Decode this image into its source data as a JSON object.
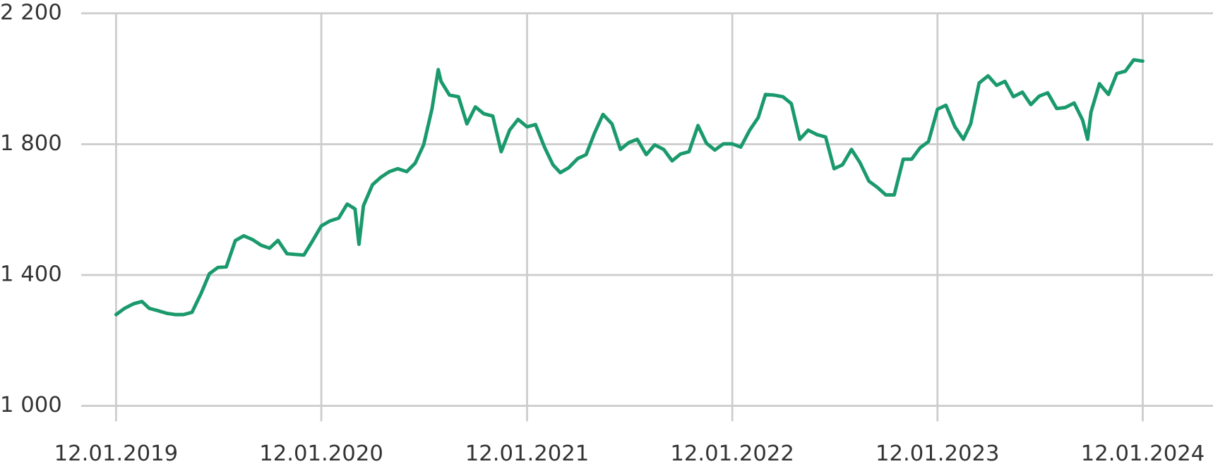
{
  "chart_data": {
    "type": "line",
    "x": [
      "12.01.2019",
      "27.01.2019",
      "12.02.2019",
      "27.02.2019",
      "12.03.2019",
      "27.03.2019",
      "12.04.2019",
      "27.04.2019",
      "12.05.2019",
      "27.05.2019",
      "12.06.2019",
      "27.06.2019",
      "12.07.2019",
      "27.07.2019",
      "12.08.2019",
      "27.08.2019",
      "12.09.2019",
      "27.09.2019",
      "12.10.2019",
      "27.10.2019",
      "12.11.2019",
      "27.11.2019",
      "12.12.2019",
      "27.12.2019",
      "12.01.2020",
      "27.01.2020",
      "12.02.2020",
      "27.02.2020",
      "12.03.2020",
      "19.03.2020",
      "27.03.2020",
      "12.04.2020",
      "27.04.2020",
      "12.05.2020",
      "27.05.2020",
      "12.06.2020",
      "27.06.2020",
      "12.07.2020",
      "27.07.2020",
      "07.08.2020",
      "12.08.2020",
      "27.08.2020",
      "12.09.2020",
      "27.09.2020",
      "12.10.2020",
      "27.10.2020",
      "12.11.2020",
      "27.11.2020",
      "12.12.2020",
      "27.12.2020",
      "12.01.2021",
      "27.01.2021",
      "12.02.2021",
      "27.02.2021",
      "12.03.2021",
      "27.03.2021",
      "12.04.2021",
      "27.04.2021",
      "12.05.2021",
      "27.05.2021",
      "12.06.2021",
      "27.06.2021",
      "12.07.2021",
      "27.07.2021",
      "12.08.2021",
      "27.08.2021",
      "12.09.2021",
      "27.09.2021",
      "12.10.2021",
      "27.10.2021",
      "12.11.2021",
      "27.11.2021",
      "12.12.2021",
      "27.12.2021",
      "12.01.2022",
      "27.01.2022",
      "12.02.2022",
      "27.02.2022",
      "12.03.2022",
      "27.03.2022",
      "12.04.2022",
      "27.04.2022",
      "12.05.2022",
      "27.05.2022",
      "12.06.2022",
      "27.06.2022",
      "12.07.2022",
      "27.07.2022",
      "12.08.2022",
      "27.08.2022",
      "12.09.2022",
      "27.09.2022",
      "12.10.2022",
      "27.10.2022",
      "12.11.2022",
      "27.11.2022",
      "12.12.2022",
      "27.12.2022",
      "12.01.2023",
      "27.01.2023",
      "12.02.2023",
      "27.02.2023",
      "12.03.2023",
      "27.03.2023",
      "12.04.2023",
      "27.04.2023",
      "12.05.2023",
      "27.05.2023",
      "12.06.2023",
      "27.06.2023",
      "12.07.2023",
      "27.07.2023",
      "12.08.2023",
      "27.08.2023",
      "12.09.2023",
      "27.09.2023",
      "06.10.2023",
      "12.10.2023",
      "27.10.2023",
      "12.11.2023",
      "27.11.2023",
      "12.12.2023",
      "27.12.2023",
      "12.01.2024"
    ],
    "values": [
      1279,
      1298,
      1312,
      1319,
      1298,
      1291,
      1283,
      1279,
      1279,
      1286,
      1343,
      1404,
      1423,
      1425,
      1505,
      1520,
      1508,
      1491,
      1482,
      1506,
      1465,
      1463,
      1461,
      1503,
      1550,
      1565,
      1574,
      1617,
      1602,
      1494,
      1612,
      1676,
      1699,
      1716,
      1725,
      1716,
      1742,
      1798,
      1909,
      2028,
      1992,
      1950,
      1945,
      1862,
      1914,
      1893,
      1886,
      1777,
      1843,
      1876,
      1853,
      1860,
      1791,
      1737,
      1713,
      1728,
      1756,
      1768,
      1834,
      1891,
      1862,
      1784,
      1805,
      1815,
      1768,
      1798,
      1784,
      1749,
      1770,
      1777,
      1857,
      1803,
      1782,
      1801,
      1801,
      1791,
      1843,
      1881,
      1952,
      1950,
      1945,
      1924,
      1815,
      1843,
      1829,
      1822,
      1725,
      1737,
      1784,
      1744,
      1687,
      1668,
      1645,
      1645,
      1754,
      1754,
      1789,
      1808,
      1907,
      1919,
      1853,
      1815,
      1862,
      1987,
      2009,
      1980,
      1992,
      1945,
      1959,
      1921,
      1947,
      1957,
      1909,
      1912,
      1926,
      1874,
      1815,
      1898,
      1985,
      1952,
      2016,
      2023,
      2058,
      2054
    ],
    "color": "#1a9a6c",
    "xlim": [
      "11.11.2018",
      "16.05.2024"
    ],
    "xticks": [
      "12.01.2019",
      "12.01.2020",
      "12.01.2021",
      "12.01.2022",
      "12.01.2023",
      "12.01.2024"
    ],
    "ylim": [
      1000,
      2200
    ],
    "yticks": [
      {
        "value": 1000,
        "label": "1 000"
      },
      {
        "value": 1400,
        "label": "1 400"
      },
      {
        "value": 1800,
        "label": "1 800"
      },
      {
        "value": 2200,
        "label": "2 200"
      }
    ],
    "grid": true
  }
}
